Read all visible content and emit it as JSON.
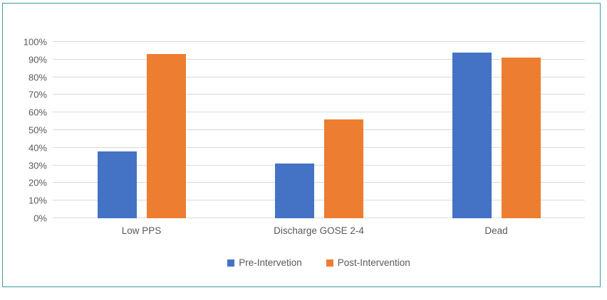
{
  "chart_data": {
    "type": "bar",
    "categories": [
      "Low PPS",
      "Discharge GOSE 2-4",
      "Dead"
    ],
    "series": [
      {
        "name": "Pre-Intervetion",
        "color": "#4472C4",
        "values": [
          38,
          31,
          94
        ]
      },
      {
        "name": "Post-Intervention",
        "color": "#ED7D31",
        "values": [
          93,
          56,
          91
        ]
      }
    ],
    "title": "",
    "xlabel": "",
    "ylabel": "",
    "ylim": [
      0,
      100
    ],
    "ytick_step": 10,
    "ytick_suffix": "%",
    "grid": true,
    "legend_position": "bottom-center"
  },
  "colors": {
    "frame_border": "#3D9BA2",
    "gridline": "#D9D9D9",
    "tick_label": "#595959",
    "background": "#FFFFFF"
  }
}
